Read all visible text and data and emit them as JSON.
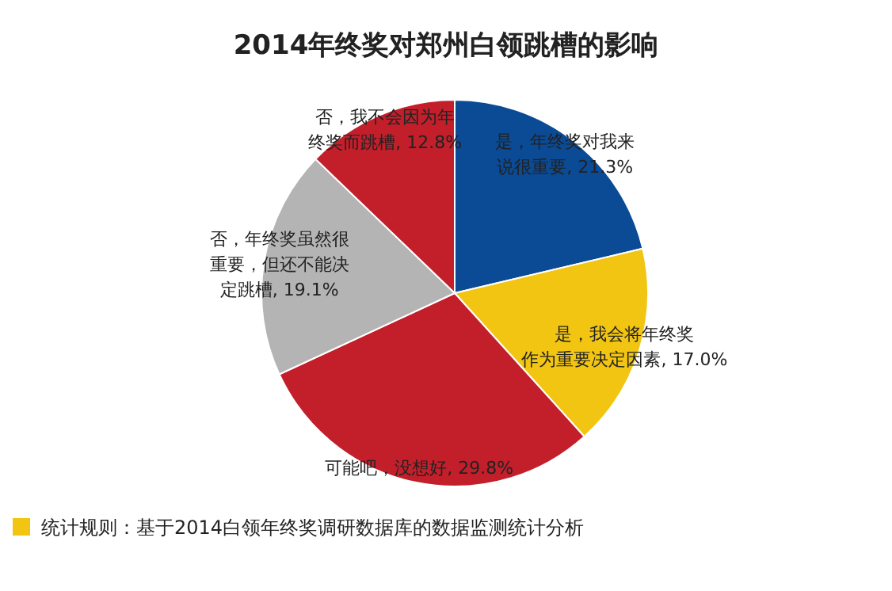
{
  "chart_data": {
    "type": "pie",
    "title": "2014年终奖对郑州白领跳槽的影响",
    "categories": [
      "是，年终奖对我来说很重要",
      "是，我会将年终奖作为重要决定因素",
      "可能吧，没想好",
      "否，年终奖虽然很重要，但还不能决定跳槽",
      "否，我不会因为年终奖而跳槽"
    ],
    "values": [
      21.3,
      17.0,
      29.8,
      19.1,
      12.8
    ],
    "colors": [
      "#0b4a94",
      "#f2c512",
      "#c21f2b",
      "#b4b4b4",
      "#c21f2b"
    ],
    "value_labels": [
      "21.3%",
      "17.0%",
      "29.8%",
      "19.1%",
      "12.8%"
    ],
    "annotations": [
      "统计规则：基于2014白领年终奖调研数据库的数据监测统计分析"
    ]
  }
}
